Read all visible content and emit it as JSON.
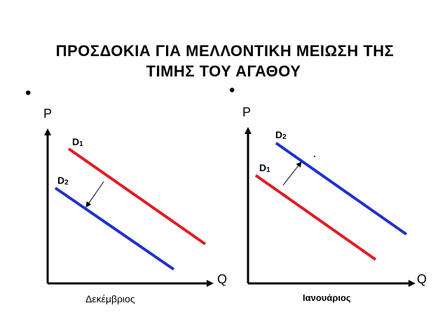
{
  "title": {
    "line1": "ΠΡΟΣΔΟΚΙΑ ΓΙΑ ΜΕΛΛΟΝΤΙΚΗ ΜΕΙΩΣΗ ΤΗΣ",
    "line2": "ΤΙΜΗΣ ΤΟΥ ΑΓΑΘΟΥ"
  },
  "bullets": [
    "•",
    "•"
  ],
  "left_panel": {
    "y_axis_label": "P",
    "x_axis_label": "Q",
    "month_label": "Δεκέμβριος",
    "curves": [
      {
        "label_main": "D",
        "label_sub": "1",
        "color": "#e11b22"
      },
      {
        "label_main": "D",
        "label_sub": "2",
        "color": "#1f2fd1"
      }
    ],
    "shift": "D1 → D2 (left)"
  },
  "right_panel": {
    "y_axis_label": "P",
    "x_axis_label": "Q",
    "month_label": "Ιανουάριος",
    "curves": [
      {
        "label_main": "D",
        "label_sub": "1",
        "color": "#e11b22"
      },
      {
        "label_main": "D",
        "label_sub": "2",
        "color": "#1f2fd1"
      }
    ],
    "shift": "D1 → D2 (right)"
  },
  "colors": {
    "d1": "#e11b22",
    "d2": "#1f2fd1",
    "axis": "#000000"
  }
}
